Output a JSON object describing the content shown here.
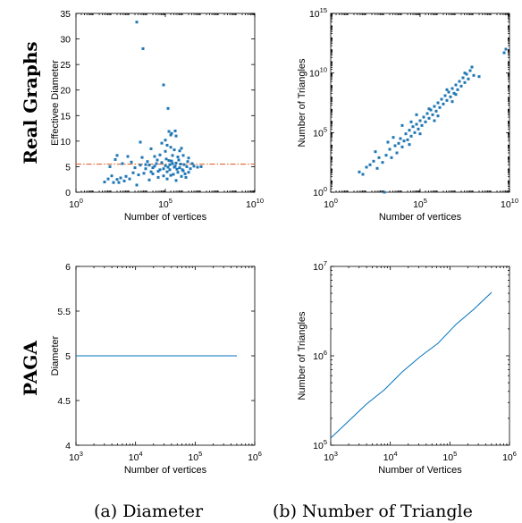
{
  "rows": [
    {
      "label": "Real Graphs"
    },
    {
      "label": "PAGA"
    }
  ],
  "captions": [
    "(a) Diameter",
    "(b) Number of Triangle"
  ],
  "colors": {
    "points": "#1f77b4",
    "reference_line": "#d95319",
    "series_line": "#0072bd"
  },
  "chart_data": [
    {
      "id": "real-diameter",
      "type": "scatter",
      "xlabel": "Number of vertices",
      "ylabel": "Effectivee Diameter",
      "xscale": "log",
      "x_exponent_range": [
        0,
        10
      ],
      "x_exponent_ticks": [
        0,
        5,
        10
      ],
      "ylim": [
        0,
        35
      ],
      "yticks": [
        0,
        5,
        10,
        15,
        20,
        25,
        30,
        35
      ],
      "reference_y": 5.5,
      "points_log10x_y": [
        [
          3.4,
          33.3
        ],
        [
          3.75,
          28.1
        ],
        [
          4.9,
          21.0
        ],
        [
          5.15,
          16.4
        ],
        [
          5.55,
          12.0
        ],
        [
          5.2,
          11.9
        ],
        [
          5.35,
          11.5
        ],
        [
          5.3,
          11.2
        ],
        [
          5.6,
          11.0
        ],
        [
          5.0,
          10.2
        ],
        [
          5.0,
          8.0
        ],
        [
          5.3,
          8.8
        ],
        [
          5.5,
          8.3
        ],
        [
          5.8,
          8.1
        ],
        [
          3.6,
          9.8
        ],
        [
          4.8,
          9.6
        ],
        [
          5.1,
          9.2
        ],
        [
          5.9,
          8.6
        ],
        [
          4.2,
          8.5
        ],
        [
          2.3,
          7.2
        ],
        [
          2.9,
          7.0
        ],
        [
          3.7,
          6.8
        ],
        [
          4.4,
          7.0
        ],
        [
          4.7,
          7.3
        ],
        [
          5.4,
          7.2
        ],
        [
          5.7,
          6.9
        ],
        [
          6.0,
          7.2
        ],
        [
          6.3,
          6.7
        ],
        [
          1.9,
          5.0
        ],
        [
          2.2,
          6.4
        ],
        [
          2.6,
          5.6
        ],
        [
          3.1,
          5.9
        ],
        [
          3.3,
          4.8
        ],
        [
          3.6,
          5.3
        ],
        [
          3.9,
          4.6
        ],
        [
          4.0,
          6.0
        ],
        [
          4.1,
          5.3
        ],
        [
          4.3,
          4.8
        ],
        [
          4.5,
          5.6
        ],
        [
          4.6,
          4.1
        ],
        [
          4.8,
          5.8
        ],
        [
          4.9,
          4.6
        ],
        [
          5.0,
          5.2
        ],
        [
          5.1,
          4.0
        ],
        [
          5.2,
          6.2
        ],
        [
          5.25,
          4.4
        ],
        [
          5.4,
          5.6
        ],
        [
          5.45,
          3.5
        ],
        [
          5.5,
          4.9
        ],
        [
          5.6,
          5.7
        ],
        [
          5.7,
          3.9
        ],
        [
          5.8,
          4.8
        ],
        [
          5.85,
          5.5
        ],
        [
          5.95,
          4.4
        ],
        [
          6.05,
          5.4
        ],
        [
          6.1,
          3.6
        ],
        [
          6.2,
          5.0
        ],
        [
          6.4,
          4.6
        ],
        [
          6.6,
          5.1
        ],
        [
          6.8,
          4.9
        ],
        [
          7.0,
          5.0
        ],
        [
          1.6,
          2.0
        ],
        [
          1.8,
          2.6
        ],
        [
          2.0,
          3.2
        ],
        [
          2.1,
          1.9
        ],
        [
          2.3,
          2.5
        ],
        [
          2.4,
          1.9
        ],
        [
          2.5,
          2.8
        ],
        [
          2.7,
          2.2
        ],
        [
          2.8,
          3.1
        ],
        [
          3.0,
          2.6
        ],
        [
          3.2,
          3.8
        ],
        [
          3.4,
          1.4
        ],
        [
          3.5,
          3.4
        ],
        [
          3.8,
          3.7
        ],
        [
          4.1,
          2.4
        ],
        [
          4.3,
          3.6
        ],
        [
          4.6,
          2.9
        ],
        [
          4.9,
          3.2
        ],
        [
          5.1,
          2.6
        ],
        [
          5.3,
          3.3
        ],
        [
          5.6,
          2.3
        ],
        [
          5.9,
          3.1
        ],
        [
          6.15,
          2.9
        ],
        [
          6.3,
          3.9
        ],
        [
          4.4,
          5.1
        ],
        [
          4.7,
          4.4
        ],
        [
          5.05,
          6.5
        ],
        [
          5.35,
          6.1
        ],
        [
          5.65,
          4.5
        ],
        [
          5.75,
          6.3
        ],
        [
          6.0,
          4.2
        ],
        [
          6.5,
          5.6
        ],
        [
          4.2,
          4.0
        ],
        [
          3.9,
          5.4
        ],
        [
          5.15,
          4.9
        ],
        [
          5.55,
          5.1
        ],
        [
          6.25,
          6.0
        ],
        [
          4.55,
          6.3
        ],
        [
          5.25,
          5.4
        ]
      ]
    },
    {
      "id": "real-triangles",
      "type": "scatter",
      "xlabel": "Number of vertices",
      "ylabel": "Number of Triangles",
      "xscale": "log",
      "yscale": "log",
      "x_exponent_range": [
        0,
        10
      ],
      "x_exponent_ticks": [
        0,
        5,
        10
      ],
      "y_exponent_range": [
        0,
        15
      ],
      "y_exponent_ticks": [
        0,
        5,
        10,
        15
      ],
      "points_log10x_log10y": [
        [
          1.6,
          1.7
        ],
        [
          1.8,
          1.5
        ],
        [
          2.0,
          2.1
        ],
        [
          2.2,
          2.3
        ],
        [
          2.4,
          2.6
        ],
        [
          2.6,
          2.0
        ],
        [
          2.7,
          2.9
        ],
        [
          2.9,
          2.5
        ],
        [
          3.0,
          0.0
        ],
        [
          3.1,
          3.1
        ],
        [
          3.3,
          3.6
        ],
        [
          3.4,
          2.9
        ],
        [
          3.6,
          3.9
        ],
        [
          3.7,
          3.3
        ],
        [
          3.8,
          4.1
        ],
        [
          3.9,
          4.5
        ],
        [
          4.0,
          3.8
        ],
        [
          4.1,
          4.3
        ],
        [
          4.2,
          4.9
        ],
        [
          4.3,
          4.4
        ],
        [
          4.4,
          5.2
        ],
        [
          4.5,
          4.7
        ],
        [
          4.6,
          5.5
        ],
        [
          4.7,
          5.0
        ],
        [
          4.8,
          5.7
        ],
        [
          4.9,
          5.3
        ],
        [
          5.0,
          6.0
        ],
        [
          5.1,
          5.6
        ],
        [
          5.2,
          6.3
        ],
        [
          5.3,
          5.9
        ],
        [
          5.4,
          6.6
        ],
        [
          5.5,
          6.2
        ],
        [
          5.6,
          6.9
        ],
        [
          5.7,
          6.5
        ],
        [
          5.8,
          7.2
        ],
        [
          5.9,
          6.8
        ],
        [
          6.0,
          7.5
        ],
        [
          6.1,
          7.1
        ],
        [
          6.2,
          7.8
        ],
        [
          6.3,
          7.4
        ],
        [
          6.4,
          8.1
        ],
        [
          6.5,
          7.7
        ],
        [
          6.6,
          8.4
        ],
        [
          6.7,
          8.0
        ],
        [
          6.8,
          8.7
        ],
        [
          6.9,
          8.3
        ],
        [
          7.0,
          9.0
        ],
        [
          7.1,
          8.6
        ],
        [
          7.2,
          9.3
        ],
        [
          7.3,
          8.9
        ],
        [
          7.4,
          9.6
        ],
        [
          7.5,
          9.2
        ],
        [
          7.6,
          9.9
        ],
        [
          7.7,
          9.5
        ],
        [
          7.8,
          10.2
        ],
        [
          8.0,
          9.8
        ],
        [
          8.3,
          9.7
        ],
        [
          9.7,
          11.7
        ],
        [
          9.8,
          12.0
        ],
        [
          2.5,
          3.4
        ],
        [
          3.5,
          4.6
        ],
        [
          4.5,
          5.9
        ],
        [
          5.5,
          7.0
        ],
        [
          6.5,
          8.6
        ],
        [
          7.5,
          10.0
        ],
        [
          4.0,
          5.6
        ],
        [
          5.0,
          4.9
        ],
        [
          6.0,
          6.4
        ],
        [
          7.0,
          8.2
        ],
        [
          3.2,
          4.2
        ],
        [
          4.8,
          6.5
        ],
        [
          5.8,
          6.0
        ],
        [
          6.8,
          7.6
        ],
        [
          7.9,
          10.5
        ],
        [
          4.4,
          4.0
        ]
      ]
    },
    {
      "id": "paga-diameter",
      "type": "line",
      "xlabel": "Number of vertices",
      "ylabel": "Diameter",
      "xscale": "log",
      "x_exponent_range": [
        3,
        6
      ],
      "x_exponent_ticks": [
        3,
        4,
        5,
        6
      ],
      "ylim": [
        4,
        6
      ],
      "yticks": [
        4,
        4.5,
        5,
        5.5,
        6
      ],
      "ytick_labels": [
        "4",
        "4.5",
        "5",
        "5.5",
        "6"
      ],
      "series_log10x_y": [
        [
          3.0,
          5.0
        ],
        [
          5.7,
          5.0
        ]
      ]
    },
    {
      "id": "paga-triangles",
      "type": "line",
      "xlabel": "Number of Vertices",
      "ylabel": "Number of Triangles",
      "xscale": "log",
      "yscale": "log",
      "x_exponent_range": [
        3,
        6
      ],
      "x_exponent_ticks": [
        3,
        4,
        5,
        6
      ],
      "y_exponent_range": [
        5,
        7
      ],
      "y_exponent_ticks": [
        5,
        6,
        7
      ],
      "series_log10x_log10y": [
        [
          3.0,
          5.08
        ],
        [
          3.3,
          5.27
        ],
        [
          3.6,
          5.46
        ],
        [
          3.9,
          5.62
        ],
        [
          4.2,
          5.82
        ],
        [
          4.5,
          5.99
        ],
        [
          4.8,
          6.14
        ],
        [
          5.1,
          6.35
        ],
        [
          5.4,
          6.52
        ],
        [
          5.7,
          6.71
        ]
      ]
    }
  ]
}
